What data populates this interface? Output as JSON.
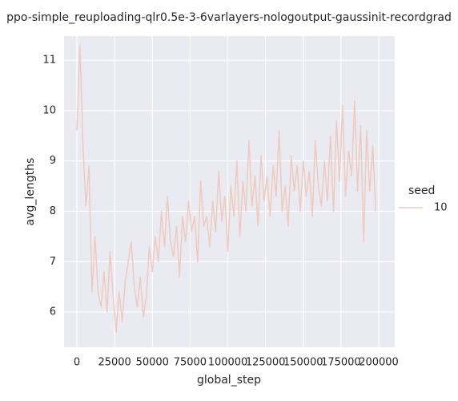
{
  "chart_data": {
    "type": "line",
    "title": "ppo-simple_reuploading-qlr0.5e-3-6varlayers-nologoutput-gaussinit-recordgrad",
    "xlabel": "global_step",
    "ylabel": "avg_lengths",
    "legend_title": "seed",
    "legend": "right",
    "grid": true,
    "xlim": [
      -8500,
      210600
    ],
    "xticks": [
      0,
      25000,
      50000,
      75000,
      100000,
      125000,
      150000,
      175000,
      200000
    ],
    "ylim": [
      5.3,
      11.48
    ],
    "yticks": [
      6,
      7,
      8,
      9,
      10,
      11
    ],
    "x": [
      0,
      2000,
      4000,
      6000,
      8000,
      10000,
      12000,
      14000,
      16000,
      18000,
      20000,
      22000,
      24000,
      26000,
      28000,
      30000,
      32000,
      34000,
      36000,
      38000,
      40000,
      42000,
      44000,
      46000,
      48000,
      50000,
      52000,
      54000,
      56000,
      58000,
      60000,
      62000,
      64000,
      66000,
      68000,
      70000,
      72000,
      74000,
      76000,
      78000,
      80000,
      82000,
      84000,
      86000,
      88000,
      90000,
      92000,
      94000,
      96000,
      98000,
      100000,
      102000,
      104000,
      106000,
      108000,
      110000,
      112000,
      114000,
      116000,
      118000,
      120000,
      122000,
      124000,
      126000,
      128000,
      130000,
      132000,
      134000,
      136000,
      138000,
      140000,
      142000,
      144000,
      146000,
      148000,
      150000,
      152000,
      154000,
      156000,
      158000,
      160000,
      162000,
      164000,
      166000,
      168000,
      170000,
      172000,
      174000,
      176000,
      178000,
      180000,
      182000,
      184000,
      186000,
      188000,
      190000,
      192000,
      194000,
      196000,
      198000
    ],
    "series": [
      {
        "name": "10",
        "color": "#efcbbf",
        "values": [
          9.6,
          11.3,
          9.3,
          8.1,
          8.9,
          6.4,
          7.5,
          6.4,
          6.1,
          6.8,
          6.0,
          7.2,
          6.3,
          5.6,
          6.4,
          5.8,
          6.6,
          7.0,
          7.4,
          6.5,
          6.1,
          6.7,
          5.9,
          6.3,
          7.3,
          6.8,
          7.5,
          7.0,
          8.0,
          7.3,
          8.3,
          7.4,
          7.1,
          7.7,
          6.7,
          7.9,
          7.4,
          8.2,
          7.6,
          7.9,
          7.0,
          8.6,
          7.7,
          7.9,
          7.3,
          8.2,
          7.6,
          8.8,
          7.8,
          8.3,
          7.2,
          8.5,
          7.9,
          9.0,
          7.5,
          8.6,
          8.0,
          9.4,
          8.1,
          8.7,
          7.7,
          9.1,
          8.2,
          8.7,
          7.9,
          8.9,
          8.3,
          9.6,
          8.0,
          8.5,
          7.7,
          9.1,
          8.4,
          8.9,
          8.0,
          9.0,
          8.3,
          8.8,
          7.9,
          9.4,
          8.5,
          8.1,
          9.0,
          8.2,
          9.5,
          8.0,
          9.8,
          8.6,
          10.1,
          8.3,
          9.2,
          8.7,
          10.2,
          8.4,
          9.7,
          7.4,
          9.6,
          8.4,
          9.3,
          8.0
        ]
      }
    ]
  }
}
